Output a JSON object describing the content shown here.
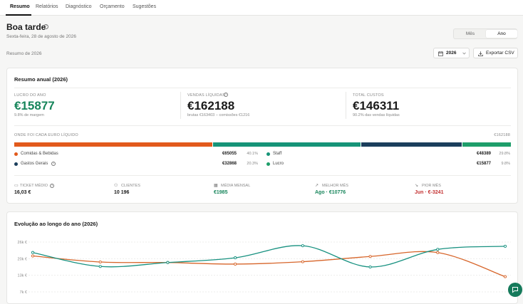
{
  "tabs": [
    {
      "label": "Resumo"
    },
    {
      "label": "Relatórios"
    },
    {
      "label": "Diagnóstico"
    },
    {
      "label": "Orçamento"
    },
    {
      "label": "Sugestões"
    }
  ],
  "header": {
    "title": "Boa tarde",
    "date": "Sexta-feira, 28 de agosto de 2026",
    "toggle": {
      "month": "Mês",
      "year": "Ano"
    }
  },
  "toolbar": {
    "summary_label": "Resumo de 2026",
    "year": "2026",
    "export_label": "Exportar CSV"
  },
  "annual": {
    "title": "Resumo anual (2026)",
    "kpis": [
      {
        "label": "LUCRO DO ANO",
        "value": "€15877",
        "sub": "9.8% de margem"
      },
      {
        "label": "VENDAS LÍQUIDAS",
        "value": "€162188",
        "sub": "brutas €163403 − comissões €1216"
      },
      {
        "label": "TOTAL CUSTOS",
        "value": "€146311",
        "sub": "90.2% das vendas líquidas"
      }
    ],
    "split": {
      "label": "ONDE FOI CADA EURO LÍQUIDO",
      "total": "€162188",
      "items": [
        {
          "name": "Comidas & Bebidas",
          "value": "€65055",
          "pct": "40.1%",
          "share": 40.1,
          "color": "#e25a1c"
        },
        {
          "name": "Staff",
          "value": "€48389",
          "pct": "29.8%",
          "share": 29.8,
          "color": "#169478"
        },
        {
          "name": "Gastos Gerais",
          "value": "€32868",
          "pct": "20.3%",
          "share": 20.3,
          "color": "#1b3e5c"
        },
        {
          "name": "Lucro",
          "value": "€15877",
          "pct": "9.8%",
          "share": 9.8,
          "color": "#1e9e6a"
        }
      ]
    },
    "metrics": [
      {
        "label": "TICKET MÉDIO",
        "value": "16,03 €"
      },
      {
        "label": "CLIENTES",
        "value": "10 196"
      },
      {
        "label": "MÉDIA MENSAL",
        "value": "€1985"
      },
      {
        "label": "MELHOR MÊS",
        "value": "Ago · €10776"
      },
      {
        "label": "PIOR MÊS",
        "value": "Jun · €-3241"
      }
    ]
  },
  "evolution": {
    "title": "Evolução ao longo do ano (2026)"
  },
  "chart_data": {
    "type": "line",
    "title": "Evolução ao longo do ano (2026)",
    "y_ticks": [
      "26k €",
      "20k €",
      "13k €",
      "7k €"
    ],
    "ylim": [
      7000,
      26000
    ],
    "x": [
      1,
      2,
      3,
      4,
      5,
      6,
      7,
      8
    ],
    "series": [
      {
        "values": [
          20700,
          18400,
          18200,
          17600,
          18500,
          20500,
          22000,
          12800
        ],
        "color": "#d7652a"
      },
      {
        "values": [
          22000,
          16700,
          18200,
          20000,
          24600,
          16500,
          23200,
          24400
        ],
        "color": "#179180"
      }
    ]
  },
  "colors": {
    "accent_green": "#17855b",
    "accent_red": "#c33030"
  }
}
